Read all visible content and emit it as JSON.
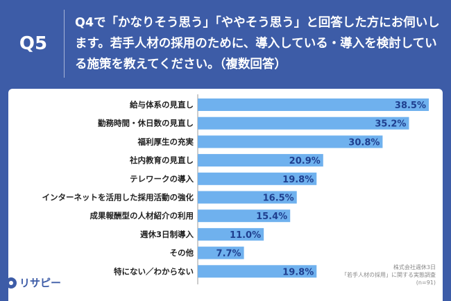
{
  "header": {
    "question_number": "Q5",
    "question_text": "Q4で「かなりそう思う」「ややそう思う」と回答した方にお伺いします。若手人材の採用のために、導入している・導入を検討している施策を教えてください。（複数回答）"
  },
  "colors": {
    "background": "#3d5ca7",
    "bar": "#6fb1ee",
    "label_text": "#222222",
    "value_text": "#1f3f8f"
  },
  "chart_data": {
    "type": "bar",
    "orientation": "horizontal",
    "categories": [
      "給与体系の見直し",
      "勤務時間・休日数の見直し",
      "福利厚生の充実",
      "社内教育の見直し",
      "テレワークの導入",
      "インターネットを活用した採用活動の強化",
      "成果報酬型の人材紹介の利用",
      "週休3日制導入",
      "その他",
      "特にない／わからない"
    ],
    "values": [
      38.5,
      35.2,
      30.8,
      20.9,
      19.8,
      16.5,
      15.4,
      11.0,
      7.7,
      19.8
    ],
    "value_labels": [
      "38.5%",
      "35.2%",
      "30.8%",
      "20.9%",
      "19.8%",
      "16.5%",
      "15.4%",
      "11.0%",
      "7.7%",
      "19.8%"
    ],
    "xlim": [
      0,
      40
    ],
    "unit": "%"
  },
  "source": {
    "line1": "株式会社週休3日",
    "line2": "「若手人材の採用」に関する実態調査",
    "line3": "(n=91)"
  },
  "logo": {
    "text": "リサピー"
  }
}
